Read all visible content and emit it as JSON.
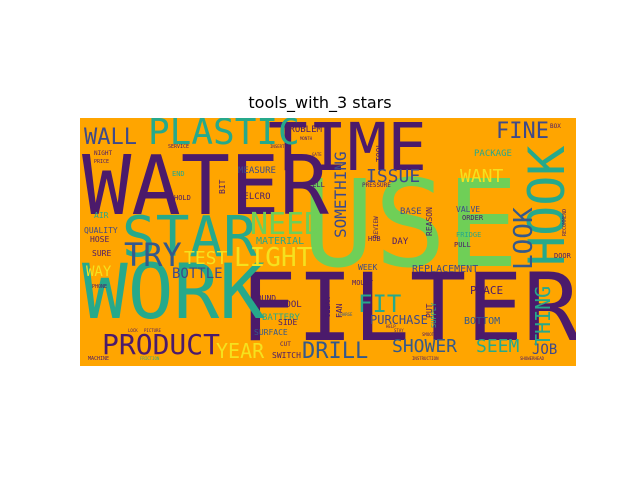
{
  "title": "tools_with_3 stars",
  "background_color": "#ffa500",
  "palette": {
    "purple": "#4b1a6b",
    "teal": "#26a98b",
    "green": "#6fcf57",
    "yellow": "#f5e11e",
    "blue": "#3e4a8a",
    "slate": "#34598c"
  },
  "words": [
    {
      "text": "USE",
      "color": "#6fcf57",
      "rot": 0
    },
    {
      "text": "FILTER",
      "color": "#4b1a6b",
      "rot": 0
    },
    {
      "text": "WATER",
      "color": "#4b1a6b",
      "rot": 0
    },
    {
      "text": "WORK",
      "color": "#26a98b",
      "rot": 0
    },
    {
      "text": "TIME",
      "color": "#4b1a6b",
      "rot": 0
    },
    {
      "text": "STAR",
      "color": "#26a98b",
      "rot": 0
    },
    {
      "text": "HOOK",
      "color": "#26a98b",
      "rot": -90
    },
    {
      "text": "PLASTIC",
      "color": "#26a98b",
      "rot": 0
    },
    {
      "text": "TRY",
      "color": "#34598c",
      "rot": 0
    },
    {
      "text": "PRODUCT",
      "color": "#4b1a6b",
      "rot": 0
    },
    {
      "text": "LIGHT",
      "color": "#f5e11e",
      "rot": 0
    },
    {
      "text": "NEED",
      "color": "#6fcf57",
      "rot": 0
    },
    {
      "text": "DRILL",
      "color": "#34598c",
      "rot": 0
    },
    {
      "text": "LOOK",
      "color": "#34598c",
      "rot": -90
    },
    {
      "text": "WALL",
      "color": "#3e4a8a",
      "rot": 0
    },
    {
      "text": "FINE",
      "color": "#3e4a8a",
      "rot": 0
    },
    {
      "text": "FIT",
      "color": "#26a98b",
      "rot": 0
    },
    {
      "text": "YEAR",
      "color": "#f5e11e",
      "rot": 0
    },
    {
      "text": "SHOWER",
      "color": "#34598c",
      "rot": 0
    },
    {
      "text": "SEEM",
      "color": "#26a98b",
      "rot": 0
    },
    {
      "text": "JOB",
      "color": "#3e4a8a",
      "rot": 0
    },
    {
      "text": "THING",
      "color": "#26a98b",
      "rot": -90
    },
    {
      "text": "SOMETHING",
      "color": "#3e4a8a",
      "rot": -90
    },
    {
      "text": "ISSUE",
      "color": "#3e4a8a",
      "rot": 0
    },
    {
      "text": "WANT",
      "color": "#f5e11e",
      "rot": 0
    },
    {
      "text": "TEST",
      "color": "#f5e11e",
      "rot": 0
    },
    {
      "text": "BOTTLE",
      "color": "#3e4a8a",
      "rot": 0
    },
    {
      "text": "WAY",
      "color": "#f5e11e",
      "rot": 0
    },
    {
      "text": "PURCHASE",
      "color": "#3e4a8a",
      "rot": 0
    },
    {
      "text": "PLACE",
      "color": "#4b1a6b",
      "rot": 0
    },
    {
      "text": "BOTTOM",
      "color": "#34598c",
      "rot": 0
    },
    {
      "text": "REPLACEMENT",
      "color": "#3e4a8a",
      "rot": 0
    },
    {
      "text": "PACKAGE",
      "color": "#26a98b",
      "rot": 0
    },
    {
      "text": "PROBLEM",
      "color": "#4b1a6b",
      "rot": 0
    },
    {
      "text": "MEASURE",
      "color": "#3e4a8a",
      "rot": 0
    },
    {
      "text": "VELCRO",
      "color": "#4b1a6b",
      "rot": 0
    },
    {
      "text": "MATERIAL",
      "color": "#26a98b",
      "rot": 0
    },
    {
      "text": "BATTERY",
      "color": "#26a98b",
      "rot": 0
    },
    {
      "text": "COOL",
      "color": "#4b1a6b",
      "rot": 0
    },
    {
      "text": "FOUND",
      "color": "#4b1a6b",
      "rot": 0
    },
    {
      "text": "SIDE",
      "color": "#4b1a6b",
      "rot": 0
    },
    {
      "text": "SURFACE",
      "color": "#34598c",
      "rot": 0
    },
    {
      "text": "SWITCH",
      "color": "#4b1a6b",
      "rot": 0
    },
    {
      "text": "WEEK",
      "color": "#3e4a8a",
      "rot": 0
    },
    {
      "text": "DAY",
      "color": "#4b1a6b",
      "rot": 0
    },
    {
      "text": "HUB",
      "color": "#4b1a6b",
      "rot": 0
    },
    {
      "text": "BASE",
      "color": "#3e4a8a",
      "rot": 0
    },
    {
      "text": "VALVE",
      "color": "#3e4a8a",
      "rot": 0
    },
    {
      "text": "ORDER",
      "color": "#4b1a6b",
      "rot": 0
    },
    {
      "text": "PULL",
      "color": "#4b1a6b",
      "rot": 0
    },
    {
      "text": "FRIDGE",
      "color": "#26a98b",
      "rot": 0
    },
    {
      "text": "QUALITY",
      "color": "#3e4a8a",
      "rot": 0
    },
    {
      "text": "HOSE",
      "color": "#4b1a6b",
      "rot": 0
    },
    {
      "text": "SURE",
      "color": "#4b1a6b",
      "rot": 0
    },
    {
      "text": "AIR",
      "color": "#26a98b",
      "rot": 0
    },
    {
      "text": "NIGHT",
      "color": "#4b1a6b",
      "rot": 0
    },
    {
      "text": "PRICE",
      "color": "#4b1a6b",
      "rot": 0
    },
    {
      "text": "HOLD",
      "color": "#4b1a6b",
      "rot": 0
    },
    {
      "text": "END",
      "color": "#26a98b",
      "rot": 0
    },
    {
      "text": "BIT",
      "color": "#4b1a6b",
      "rot": -90
    },
    {
      "text": "CELL",
      "color": "#4b1a6b",
      "rot": 0
    },
    {
      "text": "PRESSURE",
      "color": "#4b1a6b",
      "rot": 0
    },
    {
      "text": "REVIEW",
      "color": "#4b1a6b",
      "rot": -90
    },
    {
      "text": "REASON",
      "color": "#4b1a6b",
      "rot": -90
    },
    {
      "text": "TOOL",
      "color": "#4b1a6b",
      "rot": -90
    },
    {
      "text": "CLEAN",
      "color": "#4b1a6b",
      "rot": -90
    },
    {
      "text": "MOUNT",
      "color": "#4b1a6b",
      "rot": 0
    },
    {
      "text": "FAN",
      "color": "#4b1a6b",
      "rot": -90
    },
    {
      "text": "SUPPLY",
      "color": "#26a98b",
      "rot": -90
    },
    {
      "text": "PUT",
      "color": "#4b1a6b",
      "rot": -90
    },
    {
      "text": "DOOR",
      "color": "#4b1a6b",
      "rot": 0
    },
    {
      "text": "BOX",
      "color": "#4b1a6b",
      "rot": 0
    },
    {
      "text": "CUT",
      "color": "#4b1a6b",
      "rot": 0
    },
    {
      "text": "PHONE",
      "color": "#4b1a6b",
      "rot": 0
    },
    {
      "text": "LOCK",
      "color": "#4b1a6b",
      "rot": 0
    },
    {
      "text": "PICTURE",
      "color": "#4b1a6b",
      "rot": 0
    },
    {
      "text": "MACHINE",
      "color": "#4b1a6b",
      "rot": 0
    },
    {
      "text": "FRICTION",
      "color": "#26a98b",
      "rot": 0
    },
    {
      "text": "INSTRUCTION",
      "color": "#4b1a6b",
      "rot": 0
    },
    {
      "text": "SHOWERHEAD",
      "color": "#4b1a6b",
      "rot": 0
    },
    {
      "text": "SMOOTH",
      "color": "#4b1a6b",
      "rot": 0
    },
    {
      "text": "CHARGE",
      "color": "#34598c",
      "rot": 0
    },
    {
      "text": "SERVICE",
      "color": "#4b1a6b",
      "rot": 0
    },
    {
      "text": "MONTH",
      "color": "#4b1a6b",
      "rot": 0
    },
    {
      "text": "INSERT",
      "color": "#4b1a6b",
      "rot": 0
    },
    {
      "text": "GATE",
      "color": "#4b1a6b",
      "rot": 0
    },
    {
      "text": "RECOMMEND",
      "color": "#4b1a6b",
      "rot": -90
    },
    {
      "text": "HELP",
      "color": "#4b1a6b",
      "rot": 0
    },
    {
      "text": "STAY",
      "color": "#4b1a6b",
      "rot": 0
    }
  ]
}
